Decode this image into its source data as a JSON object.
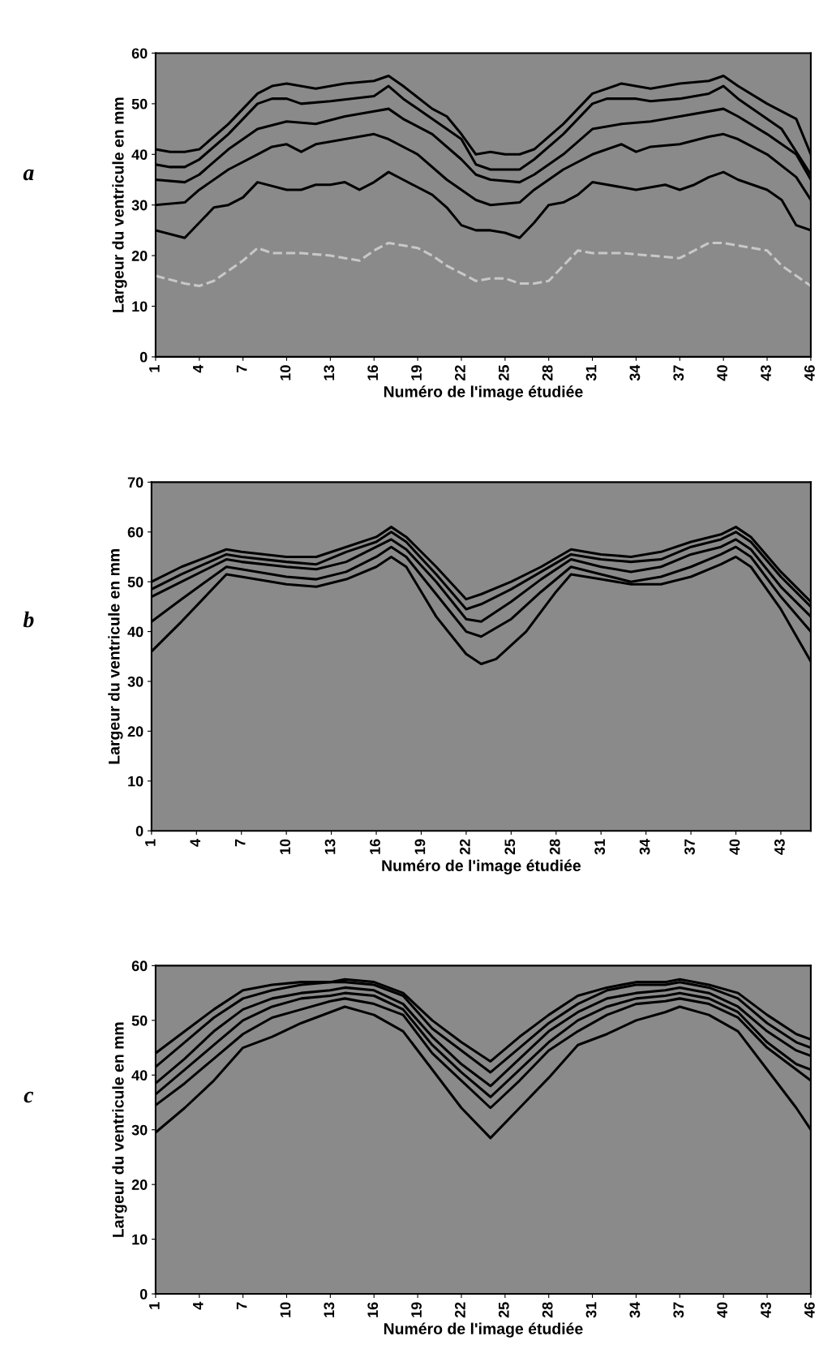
{
  "chart_data": [
    {
      "type": "line",
      "xlabel": "Numéro de l'image étudiée",
      "ylabel": "Largeur du ventricule en mm",
      "annotations": [
        "a"
      ],
      "xlim": [
        1,
        46
      ],
      "xticks": [
        1,
        4,
        7,
        10,
        13,
        16,
        19,
        22,
        25,
        28,
        31,
        34,
        37,
        40,
        43,
        46
      ],
      "ylim": [
        0,
        60
      ],
      "yticks": [
        0,
        10,
        20,
        30,
        40,
        50,
        60
      ],
      "series": [
        {
          "color": "#000000",
          "line_style": "solid",
          "x": [
            1,
            2,
            3,
            4,
            6,
            8,
            9,
            10,
            12,
            14,
            16,
            17,
            18,
            20,
            21,
            22,
            23,
            24,
            25,
            26,
            27,
            29,
            31,
            33,
            35,
            37,
            39,
            40,
            41,
            43,
            45,
            46
          ],
          "values": [
            41,
            40.5,
            40.5,
            41,
            46,
            52,
            53.5,
            54,
            53,
            54,
            54.5,
            55.5,
            53.5,
            49,
            47.5,
            44,
            40,
            40.5,
            40,
            40,
            41,
            46,
            52,
            54,
            53,
            54,
            54.5,
            55.5,
            53.5,
            50,
            47,
            40
          ]
        },
        {
          "color": "#000000",
          "line_style": "solid",
          "x": [
            1,
            2,
            3,
            4,
            6,
            8,
            9,
            10,
            11,
            13,
            16,
            17,
            18,
            21,
            22,
            23,
            24,
            26,
            27,
            29,
            31,
            32,
            34,
            35,
            37,
            39,
            40,
            41,
            44,
            46
          ],
          "values": [
            38,
            37.5,
            37.5,
            39,
            44,
            50,
            51,
            51,
            50,
            50.5,
            51.5,
            53.5,
            51,
            45,
            43,
            38,
            37,
            37,
            39,
            44,
            50,
            51,
            51,
            50.5,
            51,
            52,
            53.5,
            51,
            45,
            36
          ]
        },
        {
          "color": "#000000",
          "line_style": "solid",
          "x": [
            1,
            3,
            4,
            6,
            8,
            10,
            12,
            14,
            16,
            17,
            18,
            20,
            22,
            23,
            24,
            26,
            27,
            29,
            31,
            33,
            35,
            37,
            40,
            41,
            43,
            45,
            46
          ],
          "values": [
            35,
            34.5,
            36,
            41,
            45,
            46.5,
            46,
            47.5,
            48.5,
            49,
            47,
            44,
            39,
            36,
            35,
            34.5,
            36,
            40,
            45,
            46,
            46.5,
            47.5,
            49,
            47.5,
            44,
            40,
            35
          ]
        },
        {
          "color": "#000000",
          "line_style": "solid",
          "x": [
            1,
            3,
            4,
            6,
            8,
            9,
            10,
            11,
            12,
            14,
            16,
            17,
            19,
            21,
            22,
            23,
            24,
            26,
            27,
            29,
            31,
            33,
            34,
            35,
            37,
            39,
            40,
            41,
            43,
            45,
            46
          ],
          "values": [
            30,
            30.5,
            33,
            37,
            40,
            41.5,
            42,
            40.5,
            42,
            43,
            44,
            43,
            40,
            35,
            33,
            31,
            30,
            30.5,
            33,
            37,
            40,
            42,
            40.5,
            41.5,
            42,
            43.5,
            44,
            43,
            40,
            35.5,
            31
          ]
        },
        {
          "color": "#000000",
          "line_style": "solid",
          "x": [
            1,
            3,
            4,
            5,
            6,
            7,
            8,
            10,
            11,
            12,
            13,
            14,
            15,
            16,
            17,
            18,
            20,
            21,
            22,
            23,
            24,
            25,
            26,
            27,
            28,
            29,
            30,
            31,
            33,
            34,
            36,
            37,
            38,
            39,
            40,
            41,
            43,
            44,
            45,
            46
          ],
          "values": [
            25,
            23.5,
            26.5,
            29.5,
            30,
            31.5,
            34.5,
            33,
            33,
            34,
            34,
            34.5,
            33,
            34.5,
            36.5,
            35,
            32,
            29.5,
            26,
            25,
            25,
            24.5,
            23.5,
            26.5,
            30,
            30.5,
            32,
            34.5,
            33.5,
            33,
            34,
            33,
            34,
            35.5,
            36.5,
            35,
            33,
            31,
            26,
            25
          ]
        },
        {
          "color": "#c8c8c8",
          "line_style": "dashed",
          "x": [
            1,
            3,
            4,
            5,
            6,
            7,
            8,
            9,
            11,
            13,
            14,
            15,
            16,
            17,
            18,
            19,
            20,
            21,
            22,
            23,
            24,
            25,
            26,
            27,
            28,
            29,
            30,
            31,
            33,
            35,
            37,
            38,
            39,
            40,
            41,
            43,
            44,
            45,
            46
          ],
          "values": [
            16,
            14.5,
            14,
            15,
            17,
            19,
            21.5,
            20.5,
            20.5,
            20,
            19.5,
            19,
            21,
            22.5,
            22,
            21.5,
            20,
            18,
            16.5,
            15,
            15.5,
            15.5,
            14.5,
            14.5,
            15,
            18,
            21,
            20.5,
            20.5,
            20,
            19.5,
            21,
            22.5,
            22.5,
            22,
            21,
            18,
            16,
            14
          ]
        }
      ]
    },
    {
      "type": "line",
      "xlabel": "Numéro de l'image étudiée",
      "ylabel": "Largeur du ventricule en mm",
      "annotations": [
        "b"
      ],
      "xlim": [
        1,
        45
      ],
      "xticks": [
        1,
        4,
        7,
        10,
        13,
        16,
        19,
        22,
        25,
        28,
        31,
        34,
        37,
        40,
        43
      ],
      "ylim": [
        0,
        70
      ],
      "yticks": [
        0,
        10,
        20,
        30,
        40,
        50,
        60,
        70
      ],
      "series": [
        {
          "color": "#000000",
          "line_style": "solid",
          "x": [
            1,
            3,
            6,
            7,
            10,
            12,
            14,
            16,
            17,
            18,
            20,
            22,
            23,
            25,
            27,
            29,
            31,
            33,
            35,
            37,
            39,
            40,
            41,
            43,
            45
          ],
          "values": [
            50,
            53,
            56.5,
            56,
            55,
            55,
            57,
            59,
            61,
            59,
            53,
            46.5,
            47.5,
            50,
            53,
            56.5,
            55.5,
            55,
            56,
            58,
            59.5,
            61,
            59,
            52,
            46
          ]
        },
        {
          "color": "#000000",
          "line_style": "solid",
          "x": [
            1,
            3,
            6,
            7,
            10,
            12,
            14,
            16,
            17,
            18,
            20,
            22,
            23,
            25,
            27,
            29,
            31,
            33,
            35,
            37,
            39,
            40,
            41,
            43,
            45
          ],
          "values": [
            48.5,
            51.5,
            55.5,
            55,
            54,
            53.5,
            56,
            58,
            60,
            58,
            51.5,
            44.5,
            45.5,
            48.5,
            52,
            55.5,
            54.5,
            54,
            54.5,
            57,
            58.5,
            60,
            58,
            51,
            45
          ]
        },
        {
          "color": "#000000",
          "line_style": "solid",
          "x": [
            1,
            3,
            6,
            7,
            10,
            12,
            14,
            16,
            17,
            18,
            20,
            22,
            23,
            25,
            27,
            29,
            31,
            33,
            35,
            37,
            39,
            40,
            41,
            43,
            45
          ],
          "values": [
            47,
            50,
            54.5,
            54,
            53,
            52.5,
            54,
            57,
            58.5,
            56.5,
            50,
            42.5,
            42,
            46,
            50.5,
            54.5,
            53,
            52,
            53,
            55.5,
            57,
            58.5,
            56.5,
            49,
            43
          ]
        },
        {
          "color": "#000000",
          "line_style": "solid",
          "x": [
            1,
            3,
            6,
            7,
            10,
            12,
            14,
            16,
            17,
            18,
            20,
            22,
            23,
            25,
            27,
            29,
            31,
            33,
            35,
            37,
            39,
            40,
            41,
            43,
            45
          ],
          "values": [
            42,
            46.5,
            53,
            52.5,
            51,
            50.5,
            52,
            55,
            57,
            55,
            47.5,
            40,
            39,
            42.5,
            48,
            53,
            51.5,
            50,
            51,
            53,
            55.5,
            57,
            55,
            47,
            40
          ]
        },
        {
          "color": "#000000",
          "line_style": "solid",
          "x": [
            1,
            3,
            6,
            7,
            10,
            12,
            14,
            16,
            17,
            18,
            20,
            22,
            23,
            24,
            26,
            28,
            29,
            31,
            33,
            35,
            37,
            39,
            40,
            41,
            43,
            45
          ],
          "values": [
            36,
            42,
            51.5,
            51,
            49.5,
            49,
            50.5,
            53,
            55,
            53,
            43,
            35.5,
            33.5,
            34.5,
            40,
            48,
            51.5,
            50.5,
            49.5,
            49.5,
            51,
            53.5,
            55,
            53,
            44.5,
            34
          ]
        }
      ]
    },
    {
      "type": "line",
      "xlabel": "Numéro de l'image étudiée",
      "ylabel": "Largeur du ventricule en mm",
      "annotations": [
        "c"
      ],
      "xlim": [
        1,
        46
      ],
      "xticks": [
        1,
        4,
        7,
        10,
        13,
        16,
        19,
        22,
        25,
        28,
        31,
        34,
        37,
        40,
        43,
        46
      ],
      "ylim": [
        0,
        60
      ],
      "yticks": [
        0,
        10,
        20,
        30,
        40,
        50,
        60
      ],
      "series": [
        {
          "color": "#000000",
          "line_style": "solid",
          "x": [
            1,
            3,
            5,
            7,
            9,
            11,
            13,
            14,
            16,
            18,
            20,
            22,
            24,
            26,
            28,
            30,
            32,
            34,
            36,
            37,
            39,
            41,
            43,
            45,
            46
          ],
          "values": [
            44,
            48,
            52,
            55.5,
            56.5,
            57,
            57,
            57.5,
            57,
            55,
            50,
            46,
            42.5,
            47,
            51,
            54.5,
            56,
            57,
            57,
            57.5,
            56.5,
            55,
            51,
            47.5,
            46.5
          ]
        },
        {
          "color": "#000000",
          "line_style": "solid",
          "x": [
            1,
            3,
            5,
            7,
            9,
            11,
            13,
            14,
            16,
            18,
            20,
            22,
            24,
            26,
            28,
            30,
            32,
            34,
            36,
            37,
            39,
            41,
            43,
            45,
            46
          ],
          "values": [
            41.5,
            46,
            50.5,
            54,
            55.5,
            56.5,
            57,
            57,
            56.5,
            54.5,
            48.5,
            44.5,
            40.5,
            45,
            49.5,
            53,
            55.5,
            56.5,
            56.5,
            57,
            56,
            54,
            49.5,
            46,
            45
          ]
        },
        {
          "color": "#000000",
          "line_style": "solid",
          "x": [
            1,
            3,
            5,
            7,
            9,
            11,
            13,
            14,
            16,
            18,
            20,
            22,
            24,
            26,
            28,
            30,
            32,
            34,
            36,
            37,
            39,
            41,
            43,
            45,
            46
          ],
          "values": [
            38.5,
            43,
            48,
            52,
            54,
            55,
            55.5,
            56,
            55.5,
            53,
            47,
            42,
            38,
            43,
            48,
            51.5,
            54,
            55,
            55.5,
            56,
            55,
            52.5,
            48,
            44.5,
            43.5
          ]
        },
        {
          "color": "#000000",
          "line_style": "solid",
          "x": [
            1,
            3,
            5,
            7,
            9,
            11,
            13,
            14,
            16,
            18,
            20,
            22,
            24,
            26,
            28,
            30,
            32,
            34,
            36,
            37,
            39,
            41,
            43,
            45,
            46
          ],
          "values": [
            36.5,
            41,
            45.5,
            50,
            52.5,
            54,
            54.5,
            55,
            54.5,
            52,
            45.5,
            40.5,
            36,
            41,
            46,
            50,
            52.5,
            54,
            54.5,
            55,
            54,
            51.5,
            46,
            42,
            41
          ]
        },
        {
          "color": "#000000",
          "line_style": "solid",
          "x": [
            1,
            3,
            5,
            7,
            9,
            11,
            13,
            14,
            16,
            18,
            20,
            22,
            24,
            26,
            28,
            30,
            32,
            34,
            36,
            37,
            39,
            41,
            43,
            45,
            46
          ],
          "values": [
            34.5,
            38.5,
            43,
            47.5,
            50.5,
            52,
            53.5,
            54,
            53,
            51,
            44,
            39,
            34,
            39,
            44.5,
            48,
            51,
            53,
            53.5,
            54,
            53,
            50.5,
            45,
            41,
            39
          ]
        },
        {
          "color": "#000000",
          "line_style": "solid",
          "x": [
            1,
            3,
            5,
            7,
            9,
            11,
            13,
            14,
            16,
            18,
            20,
            22,
            24,
            26,
            28,
            30,
            32,
            34,
            36,
            37,
            39,
            41,
            43,
            45,
            46
          ],
          "values": [
            29.5,
            34,
            39,
            45,
            47,
            49.5,
            51.5,
            52.5,
            51,
            48,
            41,
            34,
            28.5,
            34,
            39.5,
            45.5,
            47.5,
            50,
            51.5,
            52.5,
            51,
            48,
            41,
            34,
            30
          ]
        }
      ]
    }
  ]
}
